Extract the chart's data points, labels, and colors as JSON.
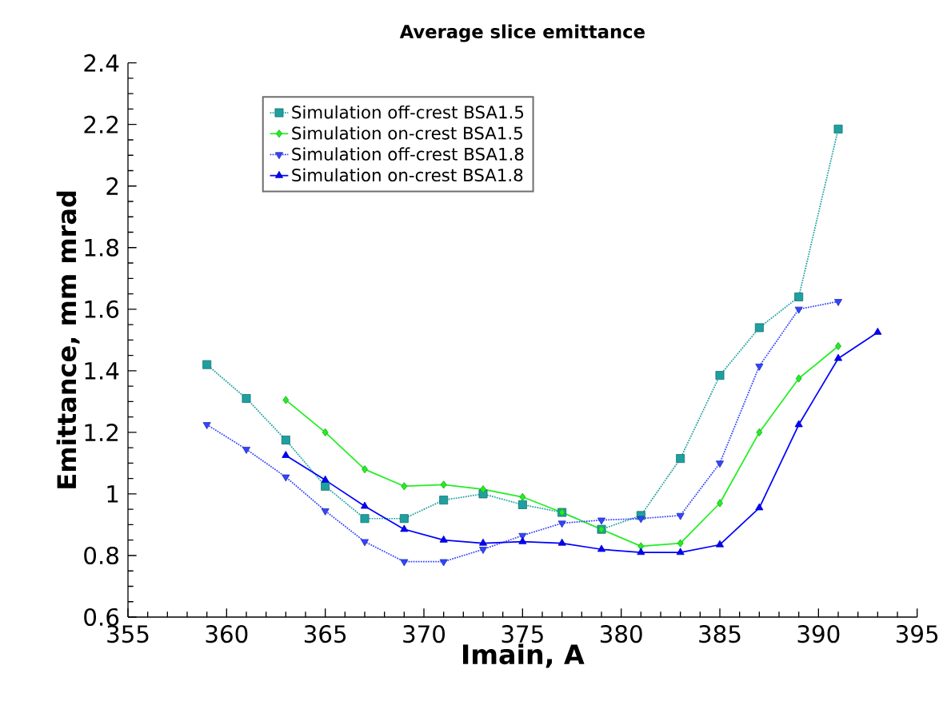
{
  "chart_data": {
    "type": "line",
    "title": "Average slice emittance",
    "xlabel": "Imain, A",
    "ylabel": "Emittance, mm mrad",
    "xlim": [
      355,
      395
    ],
    "xticks": [
      355,
      360,
      365,
      370,
      375,
      380,
      385,
      390,
      395
    ],
    "ylim": [
      0.6,
      2.4
    ],
    "yticks": [
      0.6,
      0.8,
      1,
      1.2,
      1.4,
      1.6,
      1.8,
      2,
      2.2,
      2.4
    ],
    "grid": false,
    "legend": "top left",
    "series": [
      {
        "name": "Simulation off-crest BSA1.5",
        "color": "#1fa0a0",
        "marker": "square",
        "line_style": "dotted",
        "x": [
          359,
          361,
          363,
          365,
          367,
          369,
          371,
          373,
          375,
          377,
          379,
          381,
          383,
          385,
          387,
          389,
          391
        ],
        "values": [
          1.42,
          1.31,
          1.175,
          1.025,
          0.92,
          0.92,
          0.98,
          1.0,
          0.965,
          0.94,
          0.885,
          0.93,
          1.115,
          1.385,
          1.54,
          1.64,
          2.185
        ]
      },
      {
        "name": "Simulation on-crest BSA1.5",
        "color": "#22ee22",
        "marker": "diamond",
        "line_style": "solid",
        "x": [
          363,
          365,
          367,
          369,
          371,
          373,
          375,
          377,
          379,
          381,
          383,
          385,
          387,
          389,
          391
        ],
        "values": [
          1.305,
          1.2,
          1.08,
          1.025,
          1.03,
          1.015,
          0.99,
          0.94,
          0.885,
          0.83,
          0.84,
          0.97,
          1.2,
          1.375,
          1.48
        ]
      },
      {
        "name": "Simulation off-crest BSA1.8",
        "color": "#3344ff",
        "marker": "triangle-down",
        "line_style": "dotted",
        "x": [
          359,
          361,
          363,
          365,
          367,
          369,
          371,
          373,
          375,
          377,
          379,
          381,
          383,
          385,
          387,
          389,
          391
        ],
        "values": [
          1.225,
          1.145,
          1.055,
          0.945,
          0.845,
          0.78,
          0.78,
          0.82,
          0.865,
          0.905,
          0.915,
          0.92,
          0.93,
          1.1,
          1.415,
          1.6,
          1.625
        ]
      },
      {
        "name": "Simulation on-crest BSA1.8",
        "color": "#0000ff",
        "marker": "triangle",
        "line_style": "solid",
        "x": [
          363,
          365,
          367,
          369,
          371,
          373,
          375,
          377,
          379,
          381,
          383,
          385,
          387,
          389,
          391,
          393
        ],
        "values": [
          1.125,
          1.045,
          0.96,
          0.885,
          0.85,
          0.84,
          0.845,
          0.84,
          0.82,
          0.81,
          0.81,
          0.835,
          0.955,
          1.225,
          1.44,
          1.525
        ]
      }
    ]
  }
}
